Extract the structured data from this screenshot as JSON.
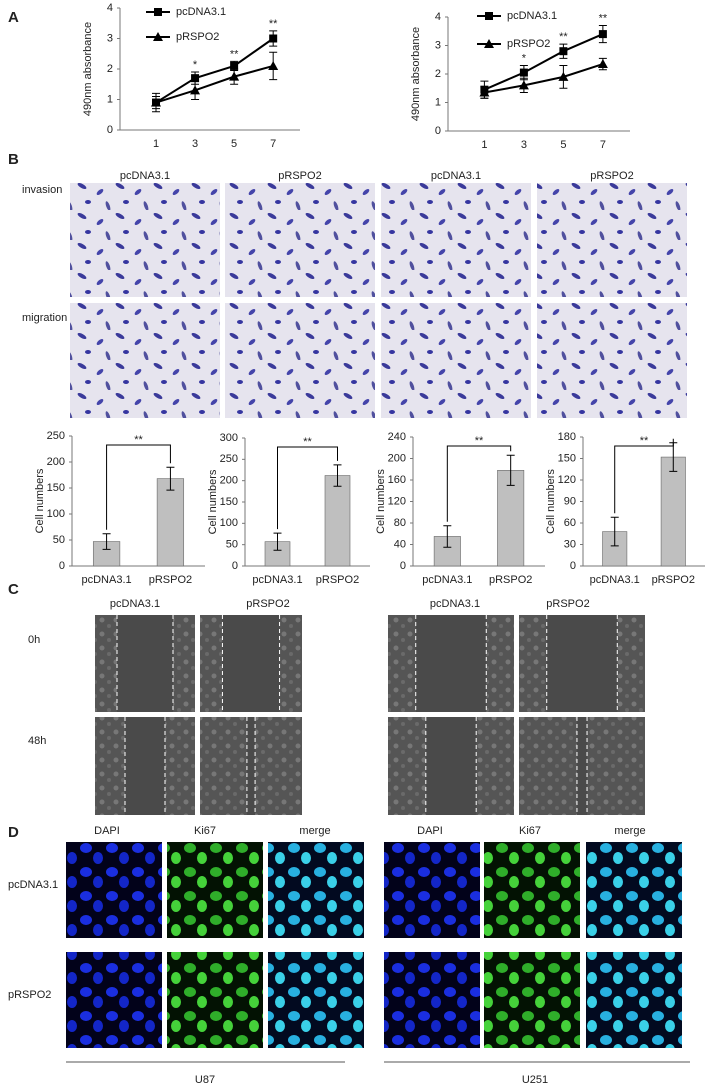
{
  "panel_labels": [
    "A",
    "B",
    "C",
    "D"
  ],
  "panel_b": {
    "columns": [
      "pcDNA3.1",
      "pRSPO2",
      "pcDNA3.1",
      "pRSPO2"
    ],
    "rows": [
      "invasion",
      "migration"
    ]
  },
  "panel_c": {
    "columns": [
      "pcDNA3.1",
      "pRSPO2",
      "pcDNA3.1",
      "pRSPO2"
    ],
    "rows": [
      "0h",
      "48h"
    ]
  },
  "panel_d": {
    "columns": [
      "DAPI",
      "Ki67",
      "merge",
      "DAPI",
      "Ki67",
      "merge"
    ],
    "rows": [
      "pcDNA3.1",
      "pRSPO2"
    ],
    "groups": [
      "U87",
      "U251"
    ]
  },
  "chart_data": [
    {
      "type": "line",
      "ylabel": "490nm absorbance",
      "categories": [
        "1",
        "3",
        "5",
        "7"
      ],
      "ylim": [
        0,
        4
      ],
      "yticks": [
        0,
        1,
        2,
        3,
        4
      ],
      "series": [
        {
          "name": "pcDNA3.1",
          "marker": "square",
          "color": "#000000",
          "values": [
            0.9,
            1.7,
            2.1,
            3.0
          ],
          "errors": [
            0.3,
            0.2,
            0.15,
            0.25
          ]
        },
        {
          "name": "pRSPO2",
          "marker": "triangle",
          "color": "#000000",
          "values": [
            0.9,
            1.3,
            1.75,
            2.1
          ],
          "errors": [
            0.2,
            0.3,
            0.25,
            0.45
          ]
        }
      ],
      "significance": [
        null,
        "*",
        "**",
        "**"
      ]
    },
    {
      "type": "line",
      "ylabel": "490nm absorbance",
      "categories": [
        "1",
        "3",
        "5",
        "7"
      ],
      "ylim": [
        0,
        4
      ],
      "yticks": [
        0,
        1,
        2,
        3,
        4
      ],
      "series": [
        {
          "name": "pcDNA3.1",
          "marker": "square",
          "color": "#000000",
          "values": [
            1.45,
            2.05,
            2.8,
            3.4
          ],
          "errors": [
            0.3,
            0.25,
            0.25,
            0.3
          ]
        },
        {
          "name": "pRSPO2",
          "marker": "triangle",
          "color": "#000000",
          "values": [
            1.35,
            1.6,
            1.9,
            2.35
          ],
          "errors": [
            0.2,
            0.25,
            0.4,
            0.2
          ]
        }
      ],
      "significance": [
        null,
        "*",
        "**",
        "**"
      ]
    },
    {
      "type": "bar",
      "ylabel": "Cell numbers",
      "categories": [
        "pcDNA3.1",
        "pRSPO2"
      ],
      "values": [
        47,
        168
      ],
      "errors": [
        15,
        22
      ],
      "color": "#bfbfbf",
      "ylim": [
        0,
        250
      ],
      "yticks": [
        0,
        50,
        100,
        150,
        200,
        250
      ],
      "significance": "**"
    },
    {
      "type": "bar",
      "ylabel": "Cell numbers",
      "categories": [
        "pcDNA3.1",
        "pRSPO2"
      ],
      "values": [
        57,
        212
      ],
      "errors": [
        20,
        25
      ],
      "color": "#bfbfbf",
      "ylim": [
        0,
        300
      ],
      "yticks": [
        0,
        50,
        100,
        150,
        200,
        250,
        300
      ],
      "significance": "**"
    },
    {
      "type": "bar",
      "ylabel": "Cell numbers",
      "categories": [
        "pcDNA3.1",
        "pRSPO2"
      ],
      "values": [
        55,
        178
      ],
      "errors": [
        20,
        28
      ],
      "color": "#bfbfbf",
      "ylim": [
        0,
        240
      ],
      "yticks": [
        0,
        40,
        80,
        120,
        160,
        200,
        240
      ],
      "significance": "**"
    },
    {
      "type": "bar",
      "ylabel": "Cell numbers",
      "categories": [
        "pcDNA3.1",
        "pRSPO2"
      ],
      "values": [
        48,
        152
      ],
      "errors": [
        20,
        20
      ],
      "color": "#bfbfbf",
      "ylim": [
        0,
        180
      ],
      "yticks": [
        0,
        30,
        60,
        90,
        120,
        150,
        180
      ],
      "significance": "**"
    }
  ]
}
